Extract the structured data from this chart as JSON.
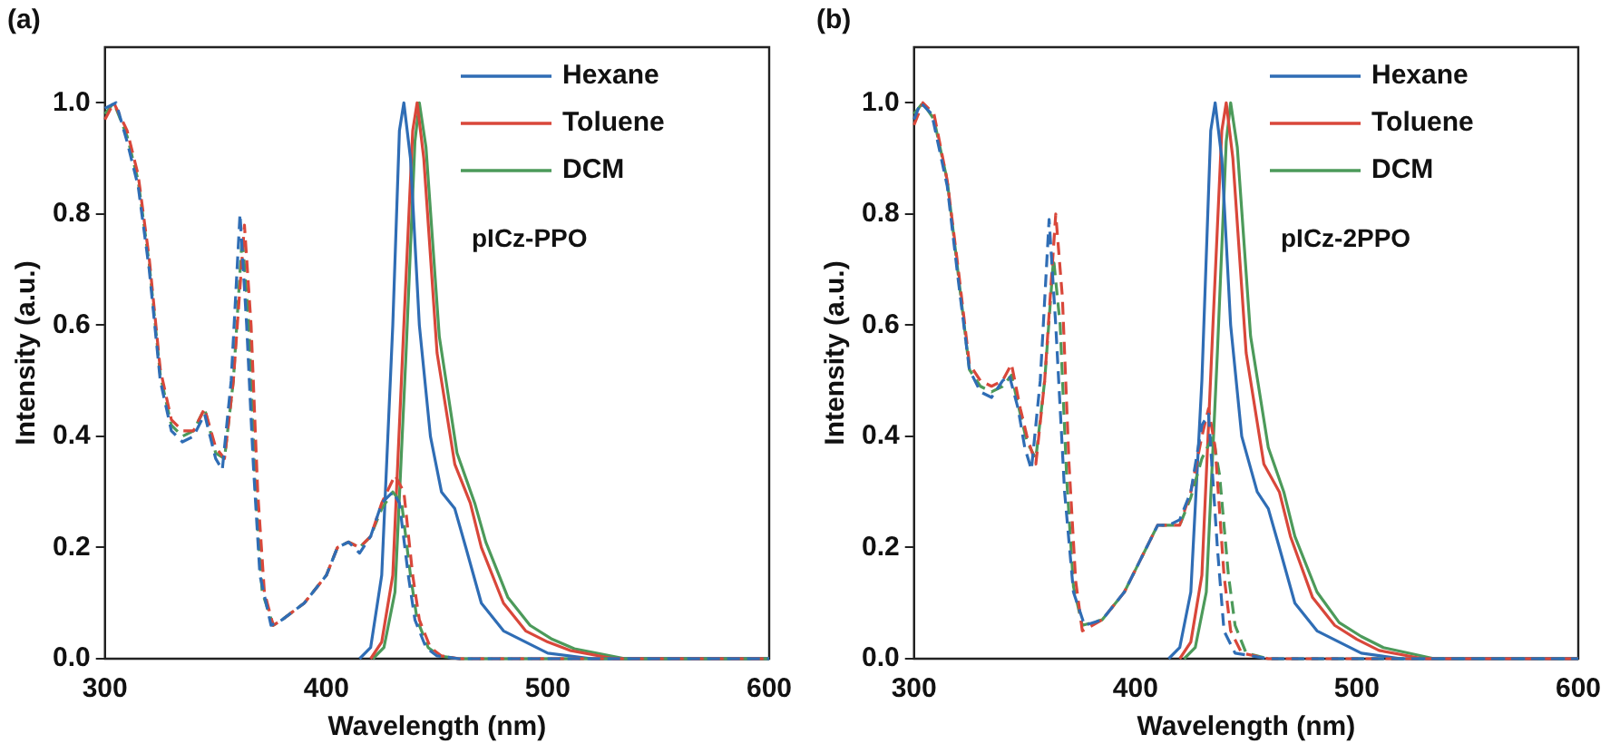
{
  "chart_data": [
    {
      "type": "line",
      "title": "(a)",
      "xlabel": "Wavelength (nm)",
      "ylabel": "Intensity (a.u.)",
      "xlim": [
        300,
        600
      ],
      "xticks": [
        300,
        400,
        500,
        600
      ],
      "ylim": [
        0,
        1.1
      ],
      "yticks": [
        {
          "value": 0,
          "label": "0.0"
        },
        {
          "value": 0.2,
          "label": "0.2"
        },
        {
          "value": 0.4,
          "label": "0.4"
        },
        {
          "value": 0.6,
          "label": "0.6"
        },
        {
          "value": 0.8,
          "label": "0.8"
        },
        {
          "value": 1,
          "label": "1.0"
        }
      ],
      "grid": false,
      "legend": "top right",
      "marker": "none",
      "annotations": [
        "pICz-PPO"
      ],
      "series": [
        {
          "color": "#2f6db5",
          "line_style": "dashed",
          "x": [
            300,
            305,
            310,
            315,
            320,
            325,
            330,
            335,
            340,
            345,
            350,
            353,
            357,
            361,
            364,
            367,
            370,
            375,
            380,
            390,
            400,
            405,
            410,
            415,
            420,
            425,
            430,
            433,
            437,
            440,
            445,
            450,
            460,
            600
          ],
          "values": [
            0.99,
            1.0,
            0.93,
            0.85,
            0.7,
            0.5,
            0.41,
            0.39,
            0.4,
            0.44,
            0.36,
            0.34,
            0.5,
            0.8,
            0.6,
            0.35,
            0.15,
            0.06,
            0.07,
            0.1,
            0.15,
            0.2,
            0.21,
            0.19,
            0.22,
            0.28,
            0.3,
            0.28,
            0.15,
            0.07,
            0.02,
            0.005,
            0,
            0
          ]
        },
        {
          "color": "#d9473a",
          "line_style": "dashed",
          "x": [
            300,
            304,
            310,
            315,
            320,
            325,
            330,
            335,
            340,
            345,
            350,
            354,
            358,
            363,
            366,
            369,
            372,
            376,
            380,
            390,
            400,
            405,
            410,
            415,
            420,
            425,
            431,
            435,
            439,
            442,
            447,
            452,
            460,
            600
          ],
          "values": [
            0.97,
            1.0,
            0.95,
            0.87,
            0.72,
            0.52,
            0.43,
            0.41,
            0.41,
            0.45,
            0.38,
            0.36,
            0.5,
            0.78,
            0.6,
            0.3,
            0.12,
            0.06,
            0.07,
            0.1,
            0.15,
            0.2,
            0.21,
            0.2,
            0.22,
            0.28,
            0.33,
            0.3,
            0.15,
            0.07,
            0.02,
            0.005,
            0,
            0
          ]
        },
        {
          "color": "#4c9a5a",
          "line_style": "dashed",
          "x": [
            300,
            304,
            310,
            315,
            320,
            325,
            330,
            335,
            340,
            345,
            350,
            354,
            358,
            362,
            365,
            368,
            371,
            376,
            380,
            390,
            400,
            405,
            410,
            415,
            420,
            425,
            430,
            434,
            438,
            441,
            446,
            451,
            460,
            600
          ],
          "values": [
            0.98,
            1.0,
            0.94,
            0.86,
            0.71,
            0.51,
            0.42,
            0.4,
            0.41,
            0.45,
            0.37,
            0.36,
            0.5,
            0.76,
            0.6,
            0.3,
            0.12,
            0.06,
            0.07,
            0.1,
            0.15,
            0.2,
            0.21,
            0.2,
            0.22,
            0.27,
            0.3,
            0.28,
            0.15,
            0.07,
            0.02,
            0.005,
            0,
            0
          ]
        },
        {
          "name": "Hexane",
          "color": "#2f6db5",
          "line_style": "solid",
          "x": [
            415,
            420,
            425,
            430,
            433,
            435,
            438,
            442,
            447,
            452,
            458,
            463,
            470,
            480,
            490,
            500,
            520,
            600
          ],
          "values": [
            0,
            0.02,
            0.15,
            0.6,
            0.95,
            1.0,
            0.9,
            0.6,
            0.4,
            0.3,
            0.27,
            0.2,
            0.1,
            0.05,
            0.03,
            0.01,
            0,
            0
          ]
        },
        {
          "name": "Toluene",
          "color": "#d9473a",
          "line_style": "solid",
          "x": [
            420,
            425,
            430,
            435,
            439,
            441,
            444,
            450,
            458,
            465,
            470,
            480,
            490,
            500,
            510,
            530,
            600
          ],
          "values": [
            0,
            0.03,
            0.15,
            0.6,
            0.95,
            1.0,
            0.9,
            0.55,
            0.35,
            0.28,
            0.2,
            0.1,
            0.05,
            0.03,
            0.015,
            0,
            0
          ]
        },
        {
          "name": "DCM",
          "color": "#4c9a5a",
          "line_style": "solid",
          "x": [
            421,
            426,
            431,
            436,
            440,
            442,
            445,
            451,
            459,
            467,
            472,
            482,
            492,
            502,
            512,
            535,
            600
          ],
          "values": [
            0,
            0.02,
            0.12,
            0.55,
            0.93,
            1.0,
            0.92,
            0.58,
            0.37,
            0.28,
            0.21,
            0.11,
            0.06,
            0.035,
            0.018,
            0,
            0
          ]
        }
      ]
    },
    {
      "type": "line",
      "title": "(b)",
      "xlabel": "Wavelength (nm)",
      "ylabel": "Intensity (a.u.)",
      "xlim": [
        300,
        600
      ],
      "xticks": [
        300,
        400,
        500,
        600
      ],
      "ylim": [
        0,
        1.1
      ],
      "yticks": [
        {
          "value": 0,
          "label": "0.0"
        },
        {
          "value": 0.2,
          "label": "0.2"
        },
        {
          "value": 0.4,
          "label": "0.4"
        },
        {
          "value": 0.6,
          "label": "0.6"
        },
        {
          "value": 0.8,
          "label": "0.8"
        },
        {
          "value": 1,
          "label": "1.0"
        }
      ],
      "grid": false,
      "legend": "top right",
      "marker": "none",
      "annotations": [
        "pICz-2PPO"
      ],
      "series": [
        {
          "color": "#2f6db5",
          "line_style": "dashed",
          "x": [
            300,
            303,
            308,
            315,
            320,
            325,
            330,
            335,
            340,
            343,
            347,
            350,
            353,
            357,
            361,
            364,
            368,
            372,
            377,
            385,
            395,
            405,
            410,
            415,
            420,
            425,
            430,
            433,
            437,
            440,
            445,
            460,
            600
          ],
          "values": [
            0.97,
            1.0,
            0.98,
            0.85,
            0.68,
            0.52,
            0.48,
            0.47,
            0.5,
            0.51,
            0.45,
            0.38,
            0.34,
            0.5,
            0.79,
            0.6,
            0.3,
            0.12,
            0.06,
            0.07,
            0.12,
            0.2,
            0.24,
            0.24,
            0.25,
            0.3,
            0.42,
            0.44,
            0.2,
            0.05,
            0.01,
            0,
            0
          ]
        },
        {
          "color": "#d9473a",
          "line_style": "dashed",
          "x": [
            300,
            304,
            309,
            315,
            320,
            325,
            330,
            335,
            340,
            344,
            348,
            351,
            355,
            359,
            364,
            367,
            370,
            373,
            376,
            385,
            395,
            405,
            410,
            415,
            420,
            425,
            430,
            433,
            436,
            440,
            443,
            448,
            460,
            600
          ],
          "values": [
            0.96,
            1.0,
            0.98,
            0.86,
            0.7,
            0.53,
            0.5,
            0.49,
            0.5,
            0.53,
            0.45,
            0.4,
            0.35,
            0.5,
            0.8,
            0.65,
            0.35,
            0.14,
            0.05,
            0.07,
            0.12,
            0.2,
            0.24,
            0.24,
            0.24,
            0.3,
            0.4,
            0.45,
            0.38,
            0.15,
            0.05,
            0.01,
            0,
            0
          ]
        },
        {
          "color": "#4c9a5a",
          "line_style": "dashed",
          "x": [
            300,
            304,
            309,
            315,
            320,
            325,
            330,
            335,
            340,
            344,
            348,
            351,
            355,
            359,
            363,
            366,
            369,
            372,
            376,
            385,
            395,
            405,
            410,
            415,
            420,
            425,
            430,
            435,
            438,
            442,
            445,
            450,
            460,
            600
          ],
          "values": [
            0.98,
            1.0,
            0.97,
            0.86,
            0.69,
            0.52,
            0.49,
            0.48,
            0.49,
            0.51,
            0.44,
            0.39,
            0.36,
            0.5,
            0.72,
            0.6,
            0.32,
            0.13,
            0.06,
            0.07,
            0.12,
            0.2,
            0.24,
            0.24,
            0.24,
            0.29,
            0.36,
            0.4,
            0.33,
            0.15,
            0.06,
            0.01,
            0,
            0
          ]
        },
        {
          "name": "Hexane",
          "color": "#2f6db5",
          "line_style": "solid",
          "x": [
            415,
            420,
            425,
            430,
            434,
            436,
            439,
            443,
            448,
            455,
            460,
            465,
            472,
            482,
            492,
            502,
            520,
            600
          ],
          "values": [
            0,
            0.02,
            0.12,
            0.5,
            0.95,
            1.0,
            0.9,
            0.6,
            0.4,
            0.3,
            0.27,
            0.2,
            0.1,
            0.05,
            0.03,
            0.01,
            0,
            0
          ]
        },
        {
          "name": "Toluene",
          "color": "#d9473a",
          "line_style": "solid",
          "x": [
            420,
            425,
            430,
            435,
            439,
            441,
            444,
            450,
            458,
            465,
            470,
            480,
            490,
            500,
            510,
            530,
            600
          ],
          "values": [
            0,
            0.03,
            0.15,
            0.6,
            0.95,
            1.0,
            0.9,
            0.55,
            0.35,
            0.3,
            0.22,
            0.11,
            0.06,
            0.035,
            0.015,
            0,
            0
          ]
        },
        {
          "name": "DCM",
          "color": "#4c9a5a",
          "line_style": "solid",
          "x": [
            422,
            427,
            432,
            437,
            441,
            443,
            446,
            452,
            460,
            467,
            472,
            482,
            492,
            502,
            512,
            535,
            600
          ],
          "values": [
            0,
            0.02,
            0.12,
            0.55,
            0.93,
            1.0,
            0.92,
            0.58,
            0.38,
            0.3,
            0.22,
            0.12,
            0.065,
            0.04,
            0.02,
            0,
            0
          ]
        }
      ]
    }
  ]
}
